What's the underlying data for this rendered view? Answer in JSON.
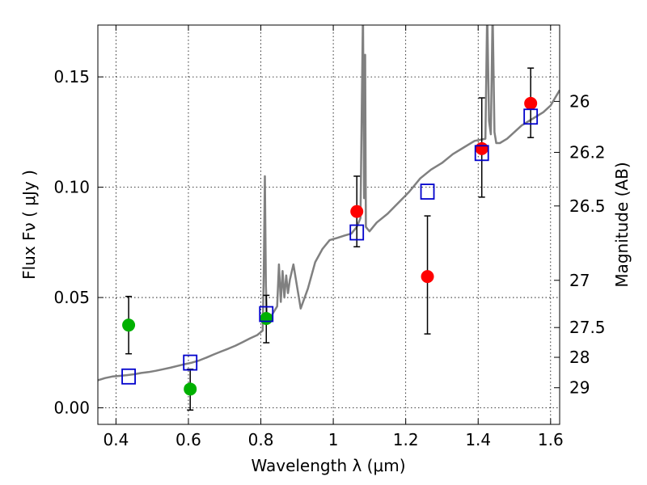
{
  "chart_data": {
    "type": "scatter",
    "title": "",
    "xlabel": "Wavelength  λ (μm)",
    "ylabel": "Flux  Fν  ( μJy )",
    "ylabel_right": "Magnitude (AB)",
    "xlim": [
      0.35,
      1.625
    ],
    "ylim": [
      -0.0075,
      0.1735
    ],
    "grid": true,
    "x_ticks": [
      {
        "value": 0.4,
        "label": "0.4"
      },
      {
        "value": 0.6,
        "label": "0.6"
      },
      {
        "value": 0.8,
        "label": "0.8"
      },
      {
        "value": 1.0,
        "label": "1"
      },
      {
        "value": 1.2,
        "label": "1.2"
      },
      {
        "value": 1.4,
        "label": "1.4"
      },
      {
        "value": 1.6,
        "label": "1.6"
      }
    ],
    "y_ticks": [
      {
        "value": 0.0,
        "label": "0.00"
      },
      {
        "value": 0.05,
        "label": "0.05"
      },
      {
        "value": 0.1,
        "label": "0.10"
      },
      {
        "value": 0.15,
        "label": "0.15"
      }
    ],
    "right_ticks": [
      {
        "flux": 0.1389,
        "label": "26"
      },
      {
        "flux": 0.1158,
        "label": "26.2"
      },
      {
        "flux": 0.0915,
        "label": "26.5"
      },
      {
        "flux": 0.0578,
        "label": "27"
      },
      {
        "flux": 0.0364,
        "label": "27.5"
      },
      {
        "flux": 0.0229,
        "label": "28"
      },
      {
        "flux": 0.0091,
        "label": "29"
      }
    ],
    "model_spectrum": {
      "color": "#808080",
      "x": [
        0.35,
        0.37,
        0.39,
        0.41,
        0.43,
        0.45,
        0.47,
        0.49,
        0.51,
        0.53,
        0.55,
        0.57,
        0.59,
        0.61,
        0.63,
        0.65,
        0.67,
        0.69,
        0.71,
        0.73,
        0.75,
        0.77,
        0.79,
        0.805,
        0.808,
        0.811,
        0.814,
        0.817,
        0.82,
        0.83,
        0.845,
        0.85,
        0.855,
        0.86,
        0.865,
        0.87,
        0.875,
        0.88,
        0.89,
        0.9,
        0.91,
        0.93,
        0.95,
        0.97,
        0.99,
        1.01,
        1.03,
        1.05,
        1.065,
        1.075,
        1.082,
        1.085,
        1.088,
        1.09,
        1.095,
        1.1,
        1.12,
        1.15,
        1.18,
        1.21,
        1.24,
        1.27,
        1.3,
        1.33,
        1.36,
        1.39,
        1.42,
        1.425,
        1.43,
        1.435,
        1.44,
        1.445,
        1.45,
        1.46,
        1.48,
        1.5,
        1.52,
        1.55,
        1.58,
        1.6,
        1.625
      ],
      "y": [
        0.0125,
        0.0135,
        0.0142,
        0.0145,
        0.0148,
        0.0152,
        0.0158,
        0.0162,
        0.0168,
        0.0175,
        0.0182,
        0.019,
        0.0198,
        0.0205,
        0.0215,
        0.0228,
        0.0242,
        0.0255,
        0.0268,
        0.0282,
        0.0298,
        0.0315,
        0.033,
        0.035,
        0.06,
        0.105,
        0.055,
        0.04,
        0.04,
        0.042,
        0.046,
        0.065,
        0.048,
        0.062,
        0.05,
        0.06,
        0.052,
        0.058,
        0.065,
        0.055,
        0.045,
        0.054,
        0.066,
        0.072,
        0.076,
        0.077,
        0.078,
        0.079,
        0.082,
        0.086,
        0.18,
        0.095,
        0.16,
        0.082,
        0.081,
        0.08,
        0.084,
        0.088,
        0.093,
        0.098,
        0.104,
        0.108,
        0.111,
        0.115,
        0.118,
        0.121,
        0.122,
        0.18,
        0.13,
        0.124,
        0.18,
        0.125,
        0.12,
        0.12,
        0.122,
        0.125,
        0.128,
        0.131,
        0.134,
        0.137,
        0.144
      ]
    },
    "series": [
      {
        "color": "#00b000",
        "marker": "circle",
        "points": [
          {
            "x": 0.435,
            "y": 0.0375,
            "err_low": 0.0245,
            "err_high": 0.0505
          },
          {
            "x": 0.605,
            "y": 0.0085,
            "err_low": -0.001,
            "err_high": 0.0175
          },
          {
            "x": 0.815,
            "y": 0.0405,
            "err_low": 0.0295,
            "err_high": 0.051
          }
        ]
      },
      {
        "color": "#ff0000",
        "marker": "circle",
        "points": [
          {
            "x": 1.065,
            "y": 0.089,
            "err_low": 0.073,
            "err_high": 0.105
          },
          {
            "x": 1.26,
            "y": 0.0595,
            "err_low": 0.0335,
            "err_high": 0.087
          },
          {
            "x": 1.41,
            "y": 0.1175,
            "err_low": 0.0955,
            "err_high": 0.1405
          },
          {
            "x": 1.545,
            "y": 0.138,
            "err_low": 0.1225,
            "err_high": 0.154
          }
        ]
      },
      {
        "color": "#0000cc",
        "marker": "square",
        "points": [
          {
            "x": 0.435,
            "y": 0.0142
          },
          {
            "x": 0.605,
            "y": 0.0205
          },
          {
            "x": 0.815,
            "y": 0.0425
          },
          {
            "x": 1.065,
            "y": 0.0795
          },
          {
            "x": 1.26,
            "y": 0.098
          },
          {
            "x": 1.41,
            "y": 0.1155
          },
          {
            "x": 1.545,
            "y": 0.132
          }
        ]
      }
    ]
  }
}
